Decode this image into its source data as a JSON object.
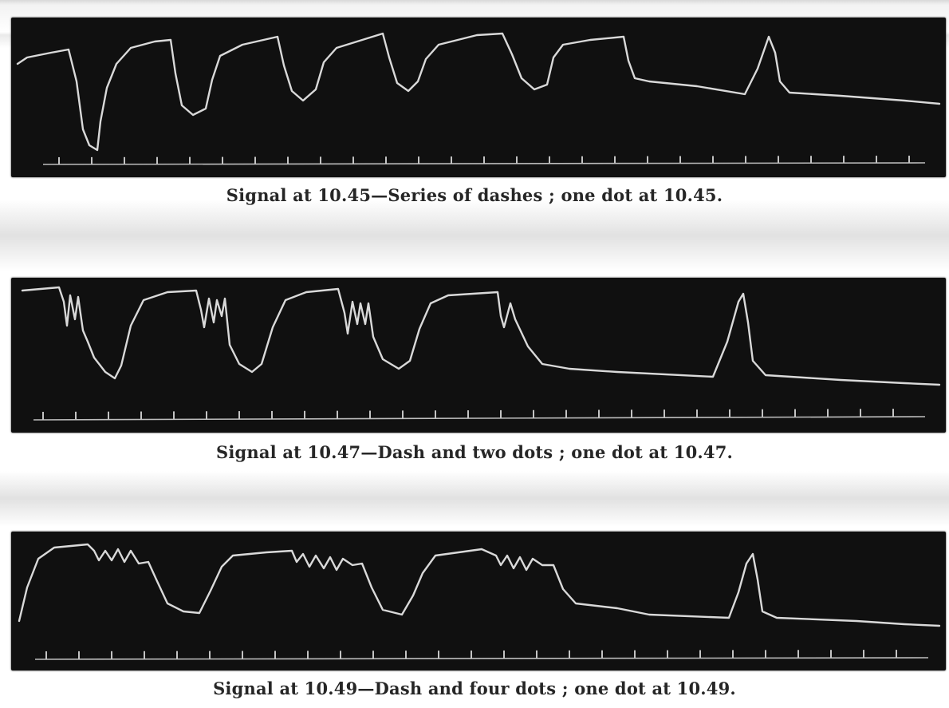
{
  "panels": [
    {
      "caption": "Signal at 10.45—Series of dashes ; one dot at 10.45."
    },
    {
      "caption": "Signal at 10.47—Dash and two dots ; one dot at 10.47."
    },
    {
      "caption": "Signal at 10.49—Dash and four dots ; one dot at 10.49."
    }
  ]
}
